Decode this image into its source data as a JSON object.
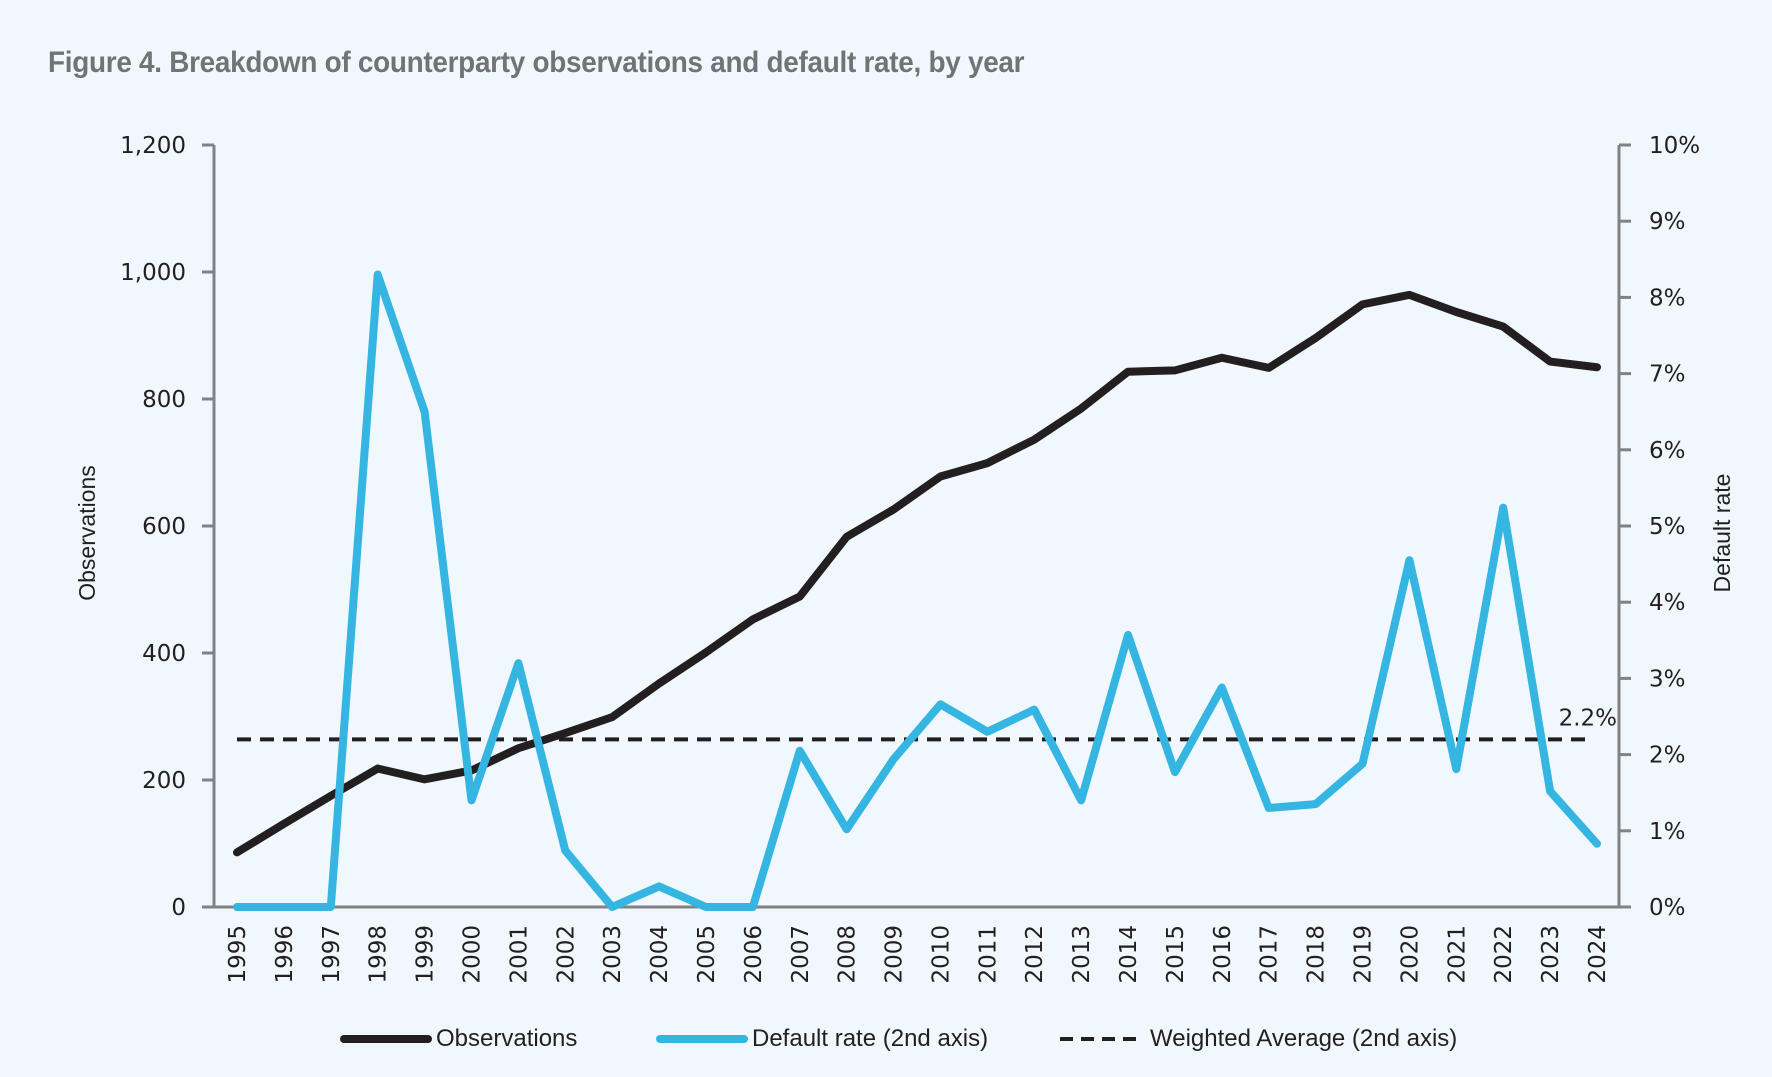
{
  "title": "Figure 4. Breakdown of counterparty observations and default rate, by year",
  "colors": {
    "observations": "#231f20",
    "default_rate": "#35b5e1",
    "weighted_average": "#231f20",
    "axis": "#808285",
    "background": "#f0f7fd",
    "title": "#707478"
  },
  "legend": [
    {
      "label": "Observations",
      "style": "solid-dark"
    },
    {
      "label": "Default rate (2nd axis)",
      "style": "solid-blue"
    },
    {
      "label": "Weighted Average (2nd axis)",
      "style": "dashed"
    }
  ],
  "chart_data": {
    "type": "line",
    "title": "Figure 4. Breakdown of counterparty observations and default rate, by year",
    "xlabel": "",
    "ylabel": "Observations",
    "y2label": "Default rate",
    "ylim": [
      0,
      1200
    ],
    "y2lim": [
      0,
      10
    ],
    "yticks": [
      "0",
      "200",
      "400",
      "600",
      "800",
      "1,000",
      "1,200"
    ],
    "y2ticks": [
      "0%",
      "1%",
      "2%",
      "3%",
      "4%",
      "5%",
      "6%",
      "7%",
      "8%",
      "9%",
      "10%"
    ],
    "grid": false,
    "legend_position": "bottom",
    "categories": [
      "1995",
      "1996",
      "1997",
      "1998",
      "1999",
      "2000",
      "2001",
      "2002",
      "2003",
      "2004",
      "2005",
      "2006",
      "2007",
      "2008",
      "2009",
      "2010",
      "2011",
      "2012",
      "2013",
      "2014",
      "2015",
      "2016",
      "2017",
      "2018",
      "2019",
      "2020",
      "2021",
      "2022",
      "2023",
      "2024"
    ],
    "series": [
      {
        "name": "Observations",
        "axis": "primary",
        "values": [
          86,
          131,
          175,
          218,
          201,
          215,
          250,
          274,
          299,
          352,
          401,
          453,
          489,
          583,
          626,
          678,
          699,
          736,
          785,
          843,
          845,
          865,
          849,
          896,
          949,
          964,
          937,
          914,
          859,
          850
        ]
      },
      {
        "name": "Default rate (2nd axis)",
        "axis": "secondary",
        "unit": "%",
        "values": [
          0,
          0,
          0,
          8.3,
          6.5,
          1.4,
          3.2,
          0.74,
          0,
          0.27,
          0,
          0,
          2.05,
          1.02,
          1.94,
          2.66,
          2.3,
          2.59,
          1.4,
          3.57,
          1.77,
          2.88,
          1.3,
          1.35,
          1.88,
          4.55,
          1.81,
          5.24,
          1.52,
          0.83
        ]
      },
      {
        "name": "Weighted Average (2nd axis)",
        "axis": "secondary",
        "unit": "%",
        "style": "dashed",
        "value": 2.2,
        "label": "2.2%"
      }
    ]
  }
}
